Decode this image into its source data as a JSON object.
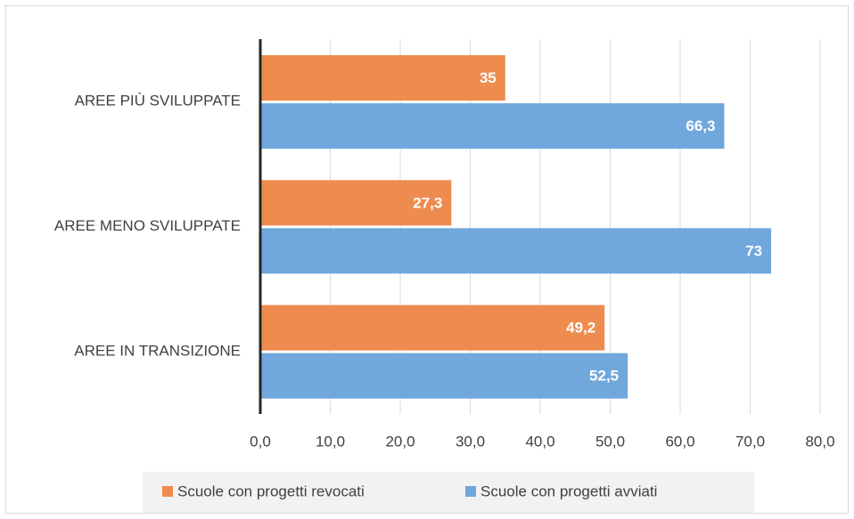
{
  "chart_data": {
    "type": "hbar",
    "categories": [
      "AREE PIÙ SVILUPPATE",
      "AREE MENO SVILUPPATE",
      "AREE IN TRANSIZIONE"
    ],
    "series": [
      {
        "name": "Scuole con progetti revocati",
        "color": "#ee8c50",
        "values": [
          35,
          27.3,
          49.2
        ],
        "value_labels": [
          "35",
          "27,3",
          "49,2"
        ]
      },
      {
        "name": "Scuole con progetti avviati",
        "color": "#70a7dc",
        "values": [
          66.3,
          73,
          52.5
        ],
        "value_labels": [
          "66,3",
          "73",
          "52,5"
        ]
      }
    ],
    "xlim": [
      0,
      80
    ],
    "xticks": [
      {
        "value": 0,
        "label": "0,0"
      },
      {
        "value": 10,
        "label": "10,0"
      },
      {
        "value": 20,
        "label": "20,0"
      },
      {
        "value": 30,
        "label": "30,0"
      },
      {
        "value": 40,
        "label": "40,0"
      },
      {
        "value": 50,
        "label": "50,0"
      },
      {
        "value": 60,
        "label": "60,0"
      },
      {
        "value": 70,
        "label": "70,0"
      },
      {
        "value": 80,
        "label": "80,0"
      }
    ],
    "grid": true,
    "legend": "bottom"
  }
}
